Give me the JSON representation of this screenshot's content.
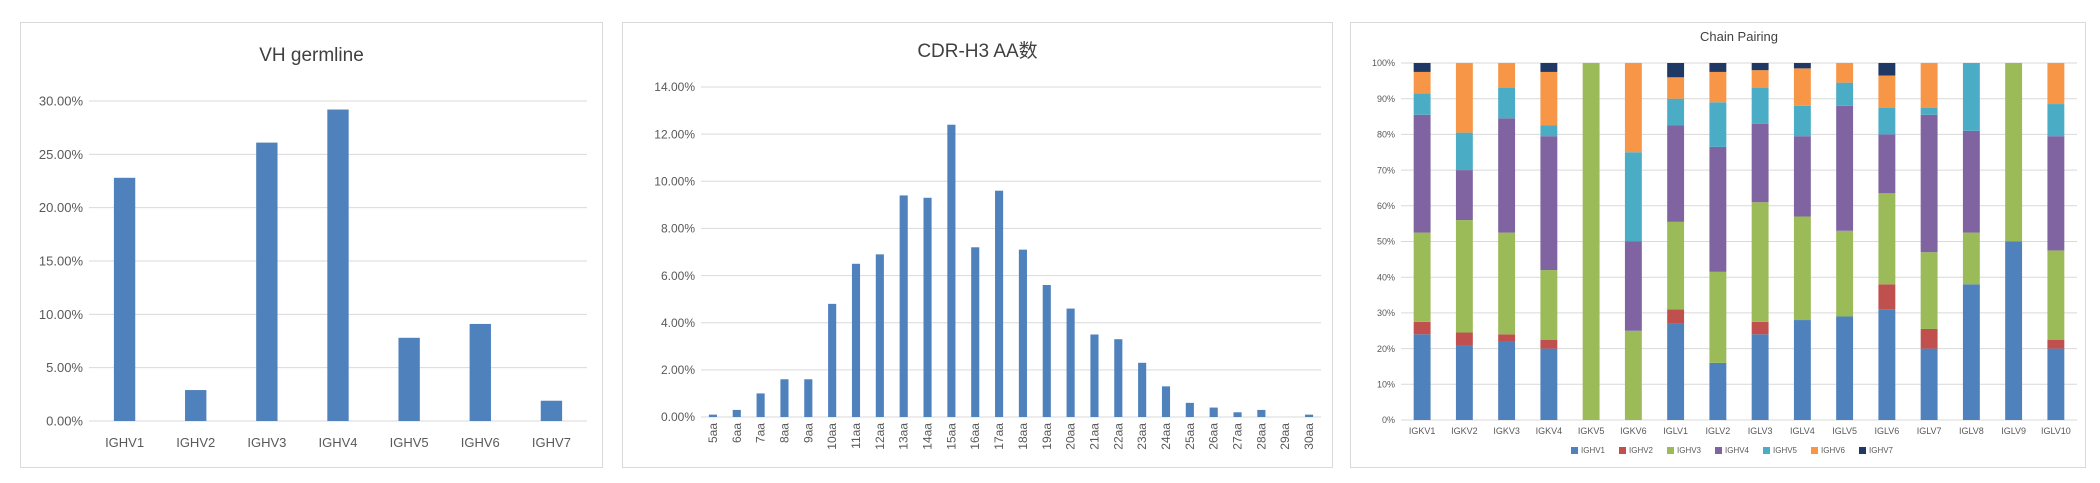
{
  "colors": {
    "bar": "#4F81BD",
    "grid": "#D9D9D9",
    "axis_text": "#595959",
    "title_text": "#404040",
    "IGHV1": "#4F81BD",
    "IGHV2": "#C0504D",
    "IGHV3": "#9BBB59",
    "IGHV4": "#8064A2",
    "IGHV5": "#4BACC6",
    "IGHV6": "#F79646",
    "IGHV7": "#1F3864"
  },
  "chart_data": [
    {
      "type": "bar",
      "title": "VH  germline",
      "categories": [
        "IGHV1",
        "IGHV2",
        "IGHV3",
        "IGHV4",
        "IGHV5",
        "IGHV6",
        "IGHV7"
      ],
      "values": [
        22.8,
        2.9,
        26.1,
        29.2,
        7.8,
        9.1,
        1.9
      ],
      "yticks": [
        "0.00%",
        "5.00%",
        "10.00%",
        "15.00%",
        "20.00%",
        "25.00%",
        "30.00%"
      ],
      "ylim": [
        0,
        30
      ],
      "grid": true
    },
    {
      "type": "bar",
      "title": "CDR-H3 AA数",
      "categories": [
        "5aa",
        "6aa",
        "7aa",
        "8aa",
        "9aa",
        "10aa",
        "11aa",
        "12aa",
        "13aa",
        "14aa",
        "15aa",
        "16aa",
        "17aa",
        "18aa",
        "19aa",
        "20aa",
        "21aa",
        "22aa",
        "23aa",
        "24aa",
        "25aa",
        "26aa",
        "27aa",
        "28aa",
        "29aa",
        "30aa"
      ],
      "values": [
        0.1,
        0.3,
        1.0,
        1.6,
        1.6,
        4.8,
        6.5,
        6.9,
        9.4,
        9.3,
        12.4,
        7.2,
        9.6,
        7.1,
        5.6,
        4.6,
        3.5,
        3.3,
        2.3,
        1.3,
        0.6,
        0.4,
        0.2,
        0.3,
        0.0,
        0.1
      ],
      "yticks": [
        "0.00%",
        "2.00%",
        "4.00%",
        "6.00%",
        "8.00%",
        "10.00%",
        "12.00%",
        "14.00%"
      ],
      "ylim": [
        0,
        14
      ],
      "grid": true
    },
    {
      "type": "bar",
      "stacked": true,
      "title": "Chain  Pairing",
      "categories": [
        "IGKV1",
        "IGKV2",
        "IGKV3",
        "IGKV4",
        "IGKV5",
        "IGKV6",
        "IGLV1",
        "IGLV2",
        "IGLV3",
        "IGLV4",
        "IGLV5",
        "IGLV6",
        "IGLV7",
        "IGLV8",
        "IGLV9",
        "IGLV10"
      ],
      "series": [
        {
          "name": "IGHV1",
          "values": [
            24,
            21,
            22,
            20,
            0,
            0,
            27,
            16,
            24,
            28,
            29,
            31,
            20,
            38,
            50,
            20
          ]
        },
        {
          "name": "IGHV2",
          "values": [
            3.5,
            3.5,
            2,
            2.5,
            0,
            0,
            4,
            0,
            3.5,
            0,
            0,
            7,
            5.5,
            0,
            0,
            2.5
          ]
        },
        {
          "name": "IGHV3",
          "values": [
            25,
            31.5,
            28.5,
            19.5,
            100,
            25,
            24.5,
            25.5,
            33.5,
            29,
            24,
            25.5,
            21.5,
            14.5,
            50,
            25
          ]
        },
        {
          "name": "IGHV4",
          "values": [
            33,
            14,
            32,
            37.5,
            0,
            25,
            27,
            35,
            22,
            22.5,
            35,
            16.5,
            38.5,
            28.5,
            0,
            32
          ]
        },
        {
          "name": "IGHV5",
          "values": [
            6,
            10.5,
            8.5,
            3,
            0,
            25,
            7.5,
            12.5,
            10,
            8.5,
            6.5,
            7.5,
            2,
            19,
            0,
            9
          ]
        },
        {
          "name": "IGHV6",
          "values": [
            6,
            19.5,
            7,
            15,
            0,
            25,
            6,
            8.5,
            5,
            10.5,
            5.5,
            9,
            12.5,
            0,
            0,
            11.5
          ]
        },
        {
          "name": "IGHV7",
          "values": [
            2.5,
            0,
            0,
            2.5,
            0,
            0,
            4,
            2.5,
            2,
            1.5,
            0,
            3.5,
            0,
            0,
            0,
            0
          ]
        }
      ],
      "yticks": [
        "0%",
        "10%",
        "20%",
        "30%",
        "40%",
        "50%",
        "60%",
        "70%",
        "80%",
        "90%",
        "100%"
      ],
      "ylim": [
        0,
        100
      ],
      "grid": true,
      "legend_position": "bottom"
    }
  ]
}
